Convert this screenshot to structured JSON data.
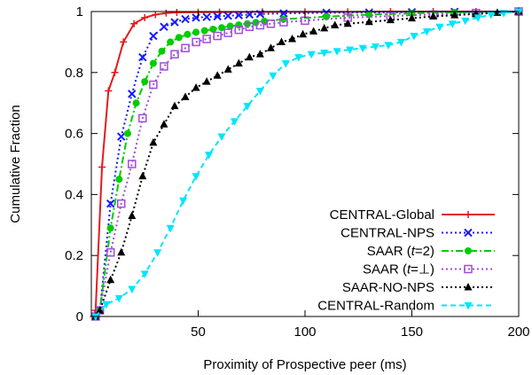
{
  "chart_data": {
    "type": "line",
    "title": "",
    "xlabel": "Proximity of Prospective peer (ms)",
    "ylabel": "Cumulative Fraction",
    "xlim": [
      0,
      200
    ],
    "ylim": [
      0,
      1
    ],
    "x_ticks": [
      50,
      100,
      150,
      200
    ],
    "y_ticks": [
      0,
      0.2,
      0.4,
      0.6,
      0.8,
      1
    ],
    "x_tick_labels": [
      "50",
      "100",
      "150",
      "200"
    ],
    "y_tick_labels": [
      "0",
      "0.2",
      "0.4",
      "0.6",
      "0.8",
      "1"
    ],
    "grid": false,
    "legend_position": "bottom-right",
    "series": [
      {
        "name": "CENTRAL-Global",
        "legend_label": {
          "text": "CENTRAL-Global"
        },
        "color": "#e41a1c",
        "dash": "solid",
        "marker": "plus",
        "x": [
          1,
          2,
          5,
          8,
          11,
          15,
          20,
          25,
          30,
          35,
          40,
          50,
          60,
          80,
          100,
          120,
          140,
          160,
          180,
          200
        ],
        "y": [
          0,
          0.02,
          0.49,
          0.74,
          0.8,
          0.9,
          0.96,
          0.98,
          0.99,
          0.995,
          0.997,
          0.998,
          0.998,
          0.999,
          0.999,
          0.999,
          1,
          1,
          1,
          1
        ]
      },
      {
        "name": "CENTRAL-NPS",
        "legend_label": {
          "text": "CENTRAL-NPS"
        },
        "color": "#1a1aff",
        "dash": "dotted",
        "marker": "cross",
        "x": [
          2,
          4,
          9,
          14,
          19,
          24,
          29,
          34,
          39,
          44,
          49,
          54,
          59,
          64,
          69,
          74,
          79,
          90,
          110,
          130,
          150,
          170,
          200
        ],
        "y": [
          0,
          0.02,
          0.37,
          0.59,
          0.73,
          0.85,
          0.92,
          0.95,
          0.965,
          0.975,
          0.98,
          0.982,
          0.984,
          0.986,
          0.988,
          0.99,
          0.992,
          0.994,
          0.996,
          0.997,
          0.998,
          0.999,
          1
        ]
      },
      {
        "name": "SAAR (t=2)",
        "legend_label": {
          "before": "SAAR (",
          "italic": "t",
          "after": "=2)"
        },
        "color": "#00cc00",
        "dash": "dashdot",
        "marker": "circle",
        "x": [
          2,
          4,
          9,
          13,
          17,
          21,
          25,
          29,
          33,
          37,
          41,
          45,
          49,
          53,
          57,
          61,
          65,
          69,
          73,
          77,
          81,
          90,
          110,
          130,
          150,
          170,
          200
        ],
        "y": [
          0,
          0.02,
          0.29,
          0.45,
          0.6,
          0.7,
          0.77,
          0.83,
          0.87,
          0.9,
          0.915,
          0.925,
          0.932,
          0.937,
          0.942,
          0.947,
          0.952,
          0.956,
          0.96,
          0.964,
          0.968,
          0.975,
          0.983,
          0.99,
          0.994,
          0.997,
          1
        ]
      },
      {
        "name": "SAAR (t=⊥)",
        "legend_label": {
          "before": "SAAR (",
          "italic": "t",
          "after": "=⊥)"
        },
        "color": "#a24cdc",
        "dash": "dotted",
        "marker": "square",
        "x": [
          2,
          4,
          9,
          14,
          19,
          24,
          29,
          34,
          39,
          44,
          49,
          54,
          59,
          64,
          69,
          74,
          79,
          84,
          90,
          100,
          120,
          140,
          160,
          180,
          200
        ],
        "y": [
          0,
          0.02,
          0.21,
          0.37,
          0.5,
          0.65,
          0.76,
          0.82,
          0.86,
          0.88,
          0.9,
          0.91,
          0.92,
          0.93,
          0.94,
          0.95,
          0.955,
          0.96,
          0.965,
          0.97,
          0.98,
          0.985,
          0.99,
          0.995,
          1
        ]
      },
      {
        "name": "SAAR-NO-NPS",
        "legend_label": {
          "text": "SAAR-NO-NPS"
        },
        "color": "#000000",
        "dash": "dotted",
        "marker": "triangle",
        "x": [
          2,
          4,
          9,
          14,
          19,
          24,
          29,
          34,
          39,
          44,
          49,
          54,
          59,
          64,
          69,
          74,
          79,
          84,
          89,
          94,
          99,
          104,
          109,
          114,
          120,
          130,
          140,
          150,
          160,
          170,
          180,
          190,
          200
        ],
        "y": [
          0,
          0.02,
          0.12,
          0.21,
          0.33,
          0.46,
          0.57,
          0.63,
          0.69,
          0.72,
          0.75,
          0.77,
          0.79,
          0.81,
          0.83,
          0.85,
          0.86,
          0.88,
          0.9,
          0.91,
          0.925,
          0.935,
          0.945,
          0.955,
          0.96,
          0.966,
          0.972,
          0.978,
          0.984,
          0.988,
          0.992,
          0.996,
          1
        ]
      },
      {
        "name": "CENTRAL-Random",
        "legend_label": {
          "text": "CENTRAL-Random"
        },
        "color": "#00e5ff",
        "dash": "dashed",
        "marker": "triangle-down",
        "x": [
          2,
          7,
          13,
          19,
          25,
          31,
          37,
          43,
          49,
          55,
          61,
          67,
          73,
          79,
          85,
          91,
          97,
          103,
          109,
          115,
          121,
          127,
          133,
          139,
          145,
          151,
          157,
          163,
          169,
          175,
          181,
          187,
          193,
          200
        ],
        "y": [
          0,
          0.04,
          0.06,
          0.09,
          0.14,
          0.21,
          0.29,
          0.38,
          0.46,
          0.53,
          0.59,
          0.64,
          0.69,
          0.74,
          0.79,
          0.83,
          0.85,
          0.86,
          0.865,
          0.87,
          0.875,
          0.88,
          0.885,
          0.89,
          0.9,
          0.92,
          0.935,
          0.95,
          0.96,
          0.97,
          0.98,
          0.99,
          0.995,
          1
        ]
      }
    ]
  }
}
